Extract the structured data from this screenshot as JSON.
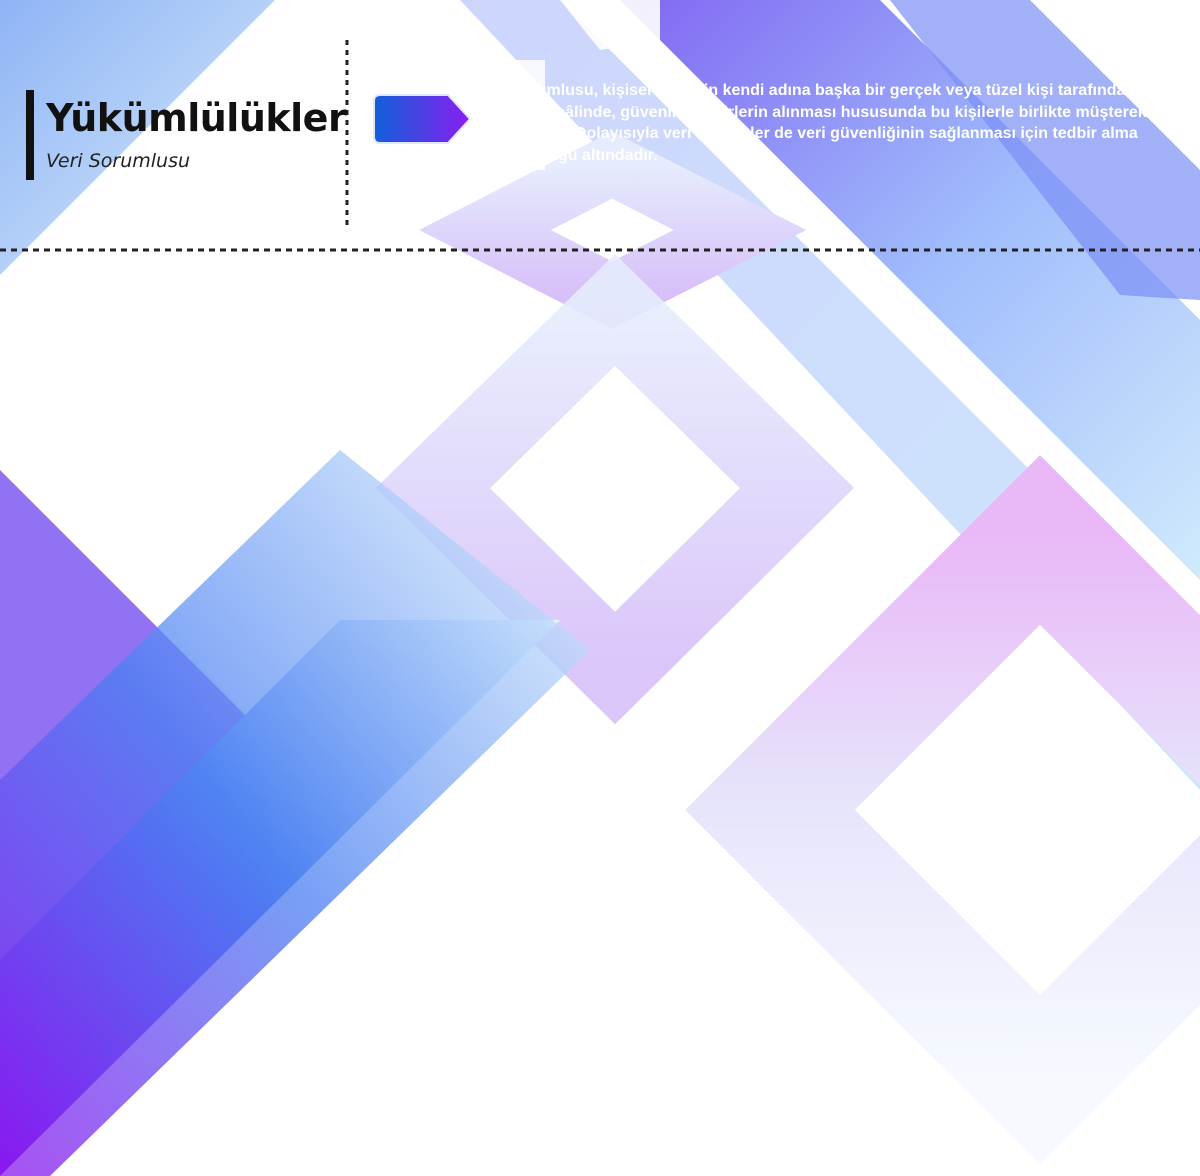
{
  "header": {
    "title": "Yükümlülükler",
    "subtitle": "Veri Sorumlusu"
  },
  "body": {
    "text": "Veri sorumlusu, kişisel verilerin kendi adına başka bir gerçek veya tüzel kişi tarafından işlenmesi hâlinde, güvenlik tedbirlerin alınması hususunda bu kişilerle birlikte müştereken sorumludur. Dolayısıyla veri işleyenler de veri güvenliğinin sağlanması için tedbir alma yükümlülüğü altındadır."
  }
}
